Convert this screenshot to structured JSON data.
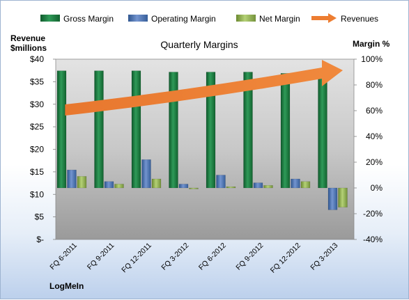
{
  "chart_data": {
    "type": "bar",
    "title": "Quarterly Margins",
    "left_axis_label_line1": "Revenue",
    "left_axis_label_line2": "$millions",
    "right_axis_label": "Margin %",
    "footer": "LogMeIn",
    "categories": [
      "FQ 6-2011",
      "FQ 9-2011",
      "FQ 12-2011",
      "FQ 3-2012",
      "FQ 6-2012",
      "FQ 9-2012",
      "FQ 12-2012",
      "FQ 3-2013"
    ],
    "y_left": {
      "min": 0,
      "max": 40,
      "step": 5,
      "tick_labels": [
        "$-",
        "$5",
        "$10",
        "$15",
        "$20",
        "$25",
        "$30",
        "$35",
        "$40"
      ]
    },
    "y_right": {
      "min": -40,
      "max": 100,
      "step": 20,
      "tick_labels": [
        "-40%",
        "-20%",
        "0%",
        "20%",
        "40%",
        "60%",
        "80%",
        "100%"
      ]
    },
    "series": [
      {
        "name": "Gross Margin",
        "axis": "right",
        "color": "#1e7a43",
        "values": [
          91,
          91,
          91,
          90,
          90,
          90,
          89,
          89
        ]
      },
      {
        "name": "Operating Margin",
        "axis": "right",
        "color": "#4a73b5",
        "values": [
          14,
          5,
          22,
          3,
          10,
          4,
          7,
          -17
        ]
      },
      {
        "name": "Net Margin",
        "axis": "right",
        "color": "#9bbb59",
        "values": [
          9,
          3,
          7,
          0,
          1,
          2,
          5,
          -15
        ]
      }
    ],
    "trend": {
      "name": "Revenues",
      "color": "#ed7d31"
    },
    "legend": "top",
    "grid": false
  }
}
